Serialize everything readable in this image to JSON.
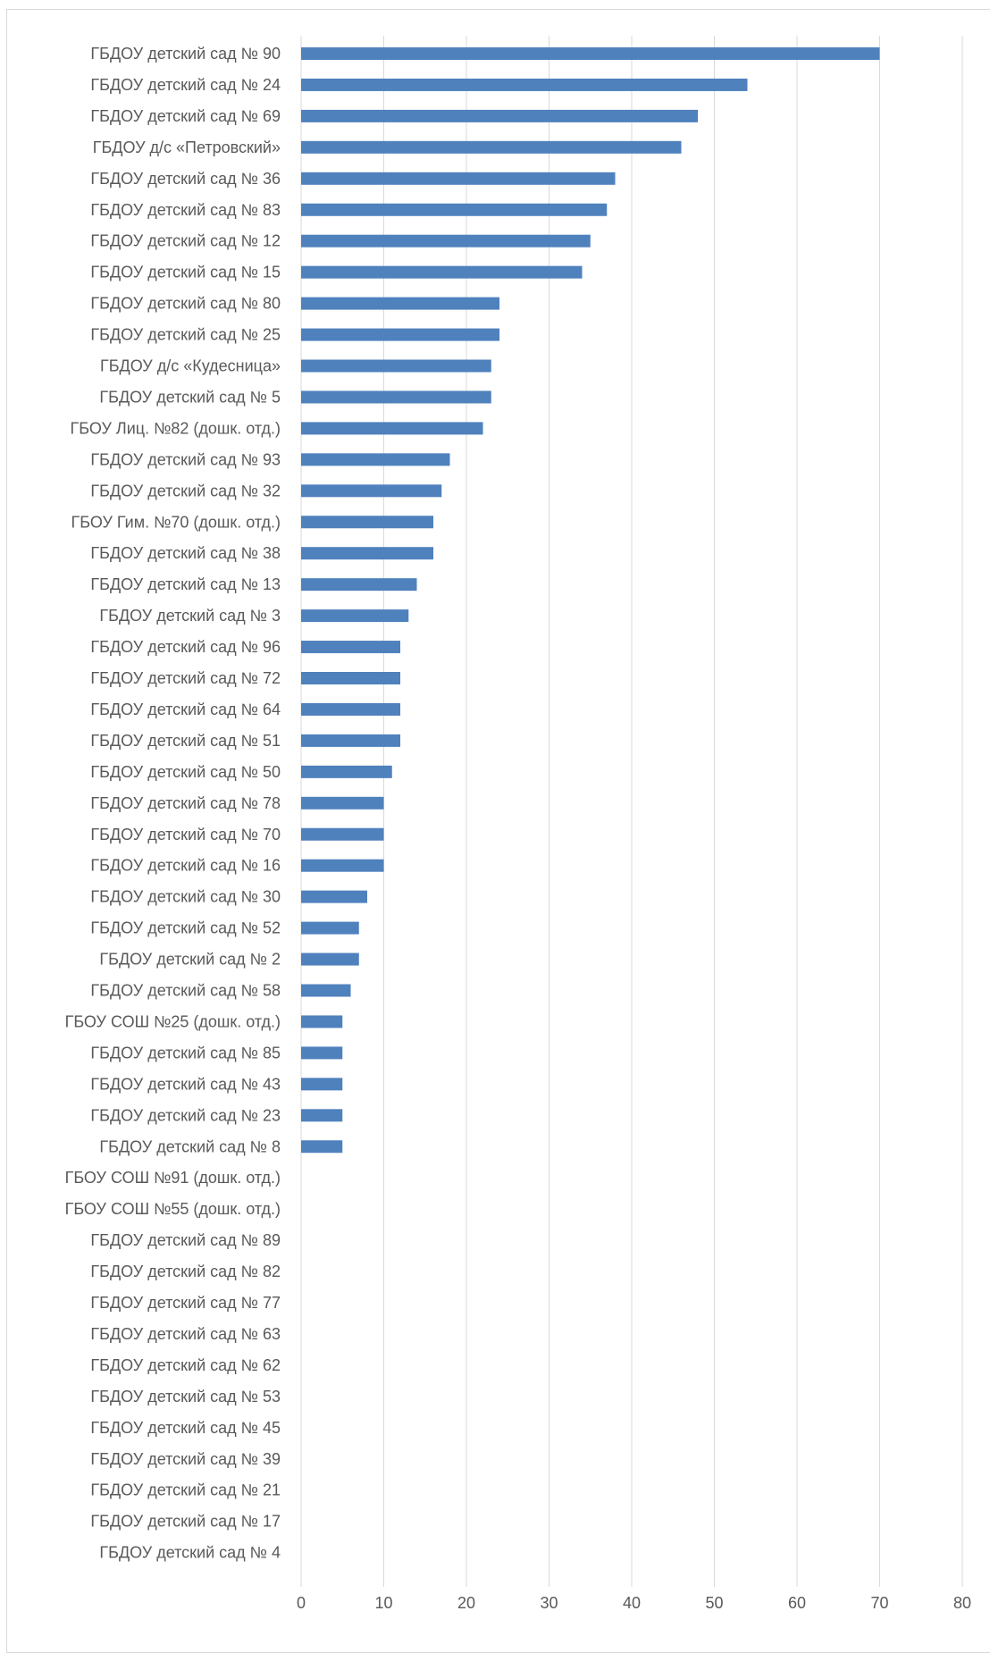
{
  "chart_data": {
    "type": "bar",
    "orientation": "horizontal",
    "title": "",
    "xlabel": "",
    "ylabel": "",
    "xlim": [
      0,
      80
    ],
    "x_ticks": [
      "0",
      "10",
      "20",
      "30",
      "40",
      "50",
      "60",
      "70",
      "80"
    ],
    "grid": true,
    "bar_color": "#4f81bd",
    "categories": [
      "ГБДОУ детский сад № 90",
      "ГБДОУ детский сад № 24",
      "ГБДОУ детский сад № 69",
      "ГБДОУ д/с «Петровский»",
      "ГБДОУ детский сад № 36",
      "ГБДОУ детский сад № 83",
      "ГБДОУ детский сад № 12",
      "ГБДОУ детский сад № 15",
      "ГБДОУ детский сад № 80",
      "ГБДОУ детский сад № 25",
      "ГБДОУ д/с «Кудесница»",
      "ГБДОУ детский сад № 5",
      "ГБОУ Лиц. №82 (дошк. отд.)",
      "ГБДОУ детский сад № 93",
      "ГБДОУ детский сад № 32",
      "ГБОУ Гим. №70 (дошк. отд.)",
      "ГБДОУ детский сад № 38",
      "ГБДОУ детский сад № 13",
      "ГБДОУ детский сад № 3",
      "ГБДОУ детский сад № 96",
      "ГБДОУ детский сад № 72",
      "ГБДОУ детский сад № 64",
      "ГБДОУ детский сад № 51",
      "ГБДОУ детский сад № 50",
      "ГБДОУ детский сад № 78",
      "ГБДОУ детский сад № 70",
      "ГБДОУ детский сад № 16",
      "ГБДОУ детский сад № 30",
      "ГБДОУ детский сад № 52",
      "ГБДОУ детский сад № 2",
      "ГБДОУ детский сад № 58",
      "ГБОУ СОШ №25 (дошк. отд.)",
      "ГБДОУ детский сад № 85",
      "ГБДОУ детский сад № 43",
      "ГБДОУ детский сад № 23",
      "ГБДОУ детский сад № 8",
      "ГБОУ СОШ №91 (дошк. отд.)",
      "ГБОУ СОШ №55 (дошк. отд.)",
      "ГБДОУ детский сад № 89",
      "ГБДОУ детский сад № 82",
      "ГБДОУ детский сад № 77",
      "ГБДОУ детский сад № 63",
      "ГБДОУ детский сад № 62",
      "ГБДОУ детский сад № 53",
      "ГБДОУ детский сад № 45",
      "ГБДОУ детский сад № 39",
      "ГБДОУ детский сад № 21",
      "ГБДОУ детский сад № 17",
      "ГБДОУ детский сад № 4"
    ],
    "values": [
      70,
      54,
      48,
      46,
      38,
      37,
      35,
      34,
      24,
      24,
      23,
      23,
      22,
      18,
      17,
      16,
      16,
      14,
      13,
      12,
      12,
      12,
      12,
      11,
      10,
      10,
      10,
      8,
      7,
      7,
      6,
      5,
      5,
      5,
      5,
      5,
      0,
      0,
      0,
      0,
      0,
      0,
      0,
      0,
      0,
      0,
      0,
      0,
      0
    ]
  }
}
